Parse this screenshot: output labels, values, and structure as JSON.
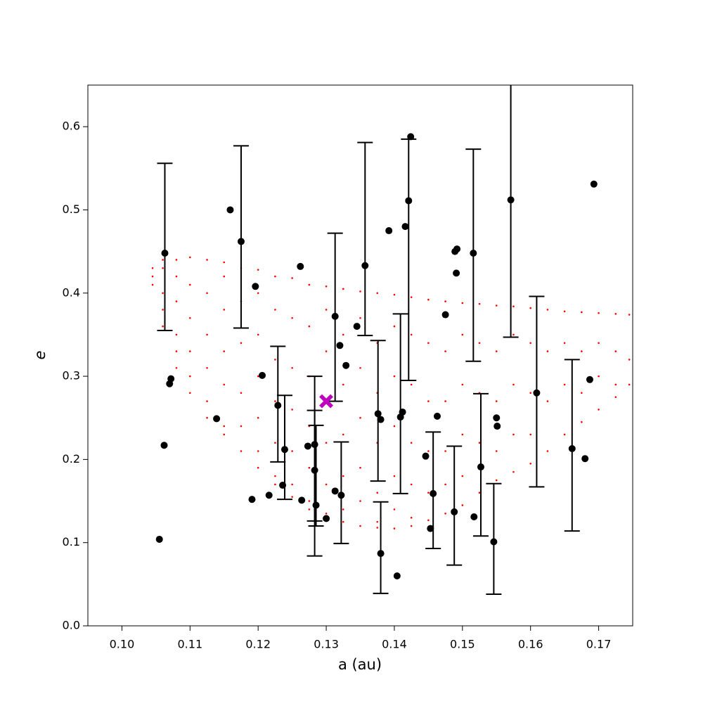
{
  "chart_data": {
    "type": "scatter",
    "xlabel": "a (au)",
    "ylabel": "e",
    "xlim": [
      0.095,
      0.175
    ],
    "ylim": [
      0,
      0.65
    ],
    "xticks": [
      {
        "value": 0.1,
        "label": "0.10"
      },
      0.11,
      0.12,
      0.13,
      0.14,
      0.15,
      0.16,
      0.17
    ],
    "yticks": [
      {
        "value": 0,
        "label": "0.0"
      },
      0.1,
      0.2,
      0.3,
      0.4,
      0.5,
      0.6
    ],
    "series": [
      {
        "color": "#ff0000",
        "marker": "dot",
        "columns": [
          {
            "x": 0.1045,
            "y": [
              0.42,
              0.41,
              0.43
            ]
          },
          {
            "x": 0.106,
            "y": [
              0.44,
              0.43,
              0.4,
              0.38,
              0.36
            ]
          },
          {
            "x": 0.108,
            "y": [
              0.44,
              0.42,
              0.39,
              0.35,
              0.33,
              0.31
            ]
          },
          {
            "x": 0.11,
            "y": [
              0.443,
              0.41,
              0.37,
              0.33,
              0.3,
              0.28
            ]
          },
          {
            "x": 0.1125,
            "y": [
              0.44,
              0.4,
              0.35,
              0.31,
              0.27,
              0.25
            ]
          },
          {
            "x": 0.115,
            "y": [
              0.437,
              0.42,
              0.38,
              0.33,
              0.29,
              0.24,
              0.23
            ]
          },
          {
            "x": 0.1175,
            "y": [
              0.43,
              0.39,
              0.34,
              0.28,
              0.24,
              0.21
            ]
          },
          {
            "x": 0.12,
            "y": [
              0.428,
              0.4,
              0.35,
              0.3,
              0.25,
              0.21,
              0.19
            ]
          },
          {
            "x": 0.1225,
            "y": [
              0.42,
              0.38,
              0.32,
              0.27,
              0.22,
              0.18,
              0.17
            ]
          },
          {
            "x": 0.125,
            "y": [
              0.418,
              0.37,
              0.31,
              0.26,
              0.21,
              0.17,
              0.155
            ]
          },
          {
            "x": 0.1275,
            "y": [
              0.41,
              0.36,
              0.3,
              0.24,
              0.19,
              0.15,
              0.14
            ]
          },
          {
            "x": 0.13,
            "y": [
              0.408,
              0.38,
              0.33,
              0.27,
              0.22,
              0.17,
              0.135
            ]
          },
          {
            "x": 0.1325,
            "y": [
              0.405,
              0.35,
              0.29,
              0.23,
              0.18,
              0.14,
              0.125
            ]
          },
          {
            "x": 0.135,
            "y": [
              0.402,
              0.37,
              0.31,
              0.25,
              0.19,
              0.15,
              0.12
            ]
          },
          {
            "x": 0.1375,
            "y": [
              0.4,
              0.34,
              0.28,
              0.22,
              0.16,
              0.125,
              0.118
            ]
          },
          {
            "x": 0.14,
            "y": [
              0.398,
              0.36,
              0.3,
              0.24,
              0.18,
              0.14,
              0.117
            ]
          },
          {
            "x": 0.1425,
            "y": [
              0.395,
              0.35,
              0.29,
              0.22,
              0.17,
              0.13,
              0.12
            ]
          },
          {
            "x": 0.145,
            "y": [
              0.392,
              0.34,
              0.27,
              0.21,
              0.16,
              0.127
            ]
          },
          {
            "x": 0.1475,
            "y": [
              0.39,
              0.33,
              0.27,
              0.21,
              0.17,
              0.135
            ]
          },
          {
            "x": 0.15,
            "y": [
              0.388,
              0.35,
              0.29,
              0.23,
              0.18,
              0.145
            ]
          },
          {
            "x": 0.1525,
            "y": [
              0.387,
              0.34,
              0.28,
              0.22,
              0.16
            ]
          },
          {
            "x": 0.155,
            "y": [
              0.385,
              0.33,
              0.27,
              0.21,
              0.175
            ]
          },
          {
            "x": 0.1575,
            "y": [
              0.384,
              0.35,
              0.29,
              0.23,
              0.185
            ]
          },
          {
            "x": 0.16,
            "y": [
              0.382,
              0.34,
              0.28,
              0.23,
              0.195
            ]
          },
          {
            "x": 0.1625,
            "y": [
              0.38,
              0.33,
              0.27,
              0.21
            ]
          },
          {
            "x": 0.165,
            "y": [
              0.378,
              0.34,
              0.29,
              0.23
            ]
          },
          {
            "x": 0.1675,
            "y": [
              0.377,
              0.33,
              0.28,
              0.245
            ]
          },
          {
            "x": 0.17,
            "y": [
              0.376,
              0.34,
              0.3,
              0.26
            ]
          },
          {
            "x": 0.1725,
            "y": [
              0.375,
              0.33,
              0.29,
              0.275
            ]
          },
          {
            "x": 0.1745,
            "y": [
              0.374,
              0.32,
              0.29
            ]
          }
        ]
      },
      {
        "color": "#000000",
        "marker": "circle",
        "x": [
          0.1063,
          0.1055,
          0.1062,
          0.107,
          0.1072,
          0.1139,
          0.1159,
          0.1175,
          0.1196,
          0.1191,
          0.1206,
          0.1216,
          0.1229,
          0.1236,
          0.1239,
          0.1262,
          0.1264,
          0.1273,
          0.1283,
          0.1283,
          0.1285,
          0.13,
          0.1313,
          0.1313,
          0.132,
          0.1322,
          0.1329,
          0.1345,
          0.1357,
          0.1376,
          0.138,
          0.138,
          0.1392,
          0.1404,
          0.1409,
          0.1412,
          0.1416,
          0.1421,
          0.1424,
          0.1446,
          0.1453,
          0.1457,
          0.1463,
          0.1475,
          0.1488,
          0.1489,
          0.1492,
          0.1491,
          0.1516,
          0.1517,
          0.1527,
          0.1546,
          0.155,
          0.1551,
          0.1571,
          0.1609,
          0.1661,
          0.168,
          0.1687,
          0.1693
        ],
        "y": [
          0.448,
          0.104,
          0.217,
          0.291,
          0.297,
          0.249,
          0.5,
          0.462,
          0.408,
          0.152,
          0.301,
          0.157,
          0.265,
          0.169,
          0.212,
          0.432,
          0.151,
          0.216,
          0.218,
          0.187,
          0.145,
          0.129,
          0.162,
          0.372,
          0.337,
          0.157,
          0.313,
          0.36,
          0.433,
          0.255,
          0.248,
          0.087,
          0.475,
          0.06,
          0.251,
          0.257,
          0.48,
          0.511,
          0.588,
          0.204,
          0.117,
          0.159,
          0.252,
          0.374,
          0.137,
          0.45,
          0.453,
          0.424,
          0.448,
          0.131,
          0.191,
          0.101,
          0.25,
          0.24,
          0.512,
          0.28,
          0.213,
          0.201,
          0.296,
          0.531
        ],
        "yerr": [
          [
            0.093,
            0.108
          ],
          null,
          null,
          null,
          null,
          null,
          null,
          [
            0.104,
            0.115
          ],
          null,
          null,
          null,
          null,
          [
            0.068,
            0.071
          ],
          null,
          [
            0.06,
            0.065
          ],
          null,
          null,
          null,
          [
            0.092,
            0.082
          ],
          [
            0.103,
            0.072
          ],
          [
            0.025,
            0.096
          ],
          null,
          null,
          [
            0.102,
            0.1
          ],
          null,
          [
            0.058,
            0.064
          ],
          null,
          null,
          [
            0.084,
            0.148
          ],
          [
            0.081,
            0.088
          ],
          null,
          [
            0.048,
            0.062
          ],
          null,
          null,
          [
            0.092,
            0.124
          ],
          null,
          null,
          [
            0.216,
            0.074
          ],
          null,
          null,
          null,
          [
            0.066,
            0.074
          ],
          null,
          null,
          [
            0.064,
            0.079
          ],
          null,
          null,
          null,
          [
            0.13,
            0.125
          ],
          null,
          [
            0.083,
            0.088
          ],
          [
            0.063,
            0.07
          ],
          null,
          null,
          [
            0.165,
            0.18
          ],
          [
            0.113,
            0.116
          ],
          [
            0.099,
            0.107
          ],
          null,
          null,
          null
        ]
      },
      {
        "color": "#bf00bf",
        "marker": "x",
        "x": [
          0.13
        ],
        "y": [
          0.27
        ]
      }
    ]
  }
}
